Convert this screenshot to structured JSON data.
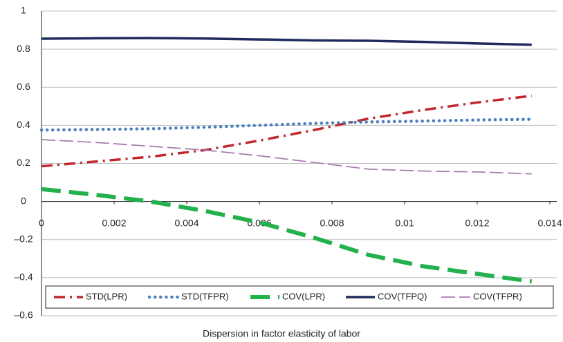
{
  "chart_data": {
    "type": "line",
    "x_label": "Dispersion in factor elasticity of labor",
    "x": [
      0,
      0.0015,
      0.003,
      0.0045,
      0.006,
      0.0075,
      0.009,
      0.0105,
      0.012,
      0.0135
    ],
    "series": [
      {
        "name": "STD(LPR)",
        "color": "#c1272d",
        "values": [
          0.185,
          0.21,
          0.235,
          0.27,
          0.32,
          0.375,
          0.435,
          0.48,
          0.52,
          0.555
        ]
      },
      {
        "name": "STD(TFPR)",
        "color": "#4a7fc1",
        "values": [
          0.375,
          0.378,
          0.382,
          0.39,
          0.4,
          0.41,
          0.418,
          0.422,
          0.428,
          0.432
        ]
      },
      {
        "name": "COV(LPR)",
        "color": "#22b14c",
        "values": [
          0.065,
          0.035,
          0.0,
          -0.05,
          -0.11,
          -0.19,
          -0.28,
          -0.34,
          -0.38,
          -0.42
        ]
      },
      {
        "name": "COV(TFPQ)",
        "color": "#1f2a5c",
        "values": [
          0.855,
          0.857,
          0.858,
          0.856,
          0.851,
          0.846,
          0.844,
          0.838,
          0.83,
          0.823
        ]
      },
      {
        "name": "COV(TFPR)",
        "color": "#a87cb0",
        "values": [
          0.325,
          0.31,
          0.29,
          0.27,
          0.24,
          0.205,
          0.17,
          0.16,
          0.155,
          0.145
        ]
      }
    ],
    "xlim": [
      0,
      0.014
    ],
    "xticks": [
      0,
      0.002,
      0.004,
      0.006,
      0.008,
      0.01,
      0.012,
      0.014
    ],
    "ylim": [
      -0.6,
      1
    ],
    "yticks": [
      {
        "value": -0.6,
        "label": "–0.6"
      },
      {
        "value": -0.4,
        "label": "–0.4"
      },
      {
        "value": -0.2,
        "label": "–0.2"
      },
      0,
      0.2,
      0.4,
      0.6,
      0.8,
      1
    ],
    "grid": true,
    "legend": "bottom"
  }
}
